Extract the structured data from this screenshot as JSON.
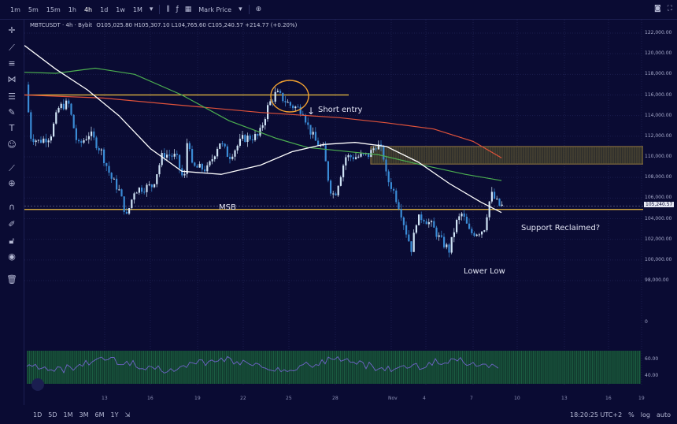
{
  "toolbar": {
    "timeframes": [
      "1m",
      "5m",
      "15m",
      "1h",
      "4h",
      "1d",
      "1w",
      "1M"
    ],
    "active_timeframe": "4h",
    "price_type": "Mark Price"
  },
  "legend": {
    "symbol": "MBTCUSDT · 4h · Bybit",
    "open": "O105,025.80",
    "high": "H105,307.10",
    "low": "L104,765.60",
    "close": "C105,240.57",
    "change": "+214.77 (+0.20%)"
  },
  "price_axis": {
    "ticks": [
      "122,000.00",
      "120,000.00",
      "118,000.00",
      "116,000.00",
      "114,000.00",
      "112,000.00",
      "110,000.00",
      "108,000.00",
      "106,000.00",
      "104,000.00",
      "102,000.00",
      "100,000.00",
      "98,000.00",
      "0"
    ],
    "current_price": "105,240.57",
    "oscillator_ticks": [
      "60.00",
      "40.00"
    ]
  },
  "date_axis": [
    "13",
    "16",
    "19",
    "22",
    "25",
    "28",
    "Nov",
    "4",
    "7",
    "10",
    "13",
    "16",
    "19"
  ],
  "annotations": {
    "short_entry": "Short entry",
    "msb": "MSB",
    "support": "Support Reclaimed?",
    "lower_low": "Lower Low"
  },
  "bottom": {
    "ranges": [
      "1D",
      "5D",
      "1M",
      "3M",
      "6M",
      "1Y"
    ],
    "clock": "18:20:25 UTC+2",
    "percent": "%",
    "log": "log",
    "auto": "auto"
  },
  "colors": {
    "background": "#0a0b33",
    "bull": "#cfe3f5",
    "bear": "#3a8bd6",
    "ma_white": "#ffffff",
    "ma_green": "#4caf50",
    "ma_red": "#e0523a",
    "support_line": "#f0c040",
    "circle": "#f0a030"
  },
  "icons": [
    "crosshair-icon",
    "trendline-icon",
    "fib-icon",
    "pattern-icon",
    "brush-icon",
    "text-icon",
    "emoji-icon",
    "ruler-icon",
    "zoom-icon",
    "magnet-icon",
    "lock-draw-icon",
    "lock-icon",
    "eye-icon",
    "trash-icon"
  ]
}
